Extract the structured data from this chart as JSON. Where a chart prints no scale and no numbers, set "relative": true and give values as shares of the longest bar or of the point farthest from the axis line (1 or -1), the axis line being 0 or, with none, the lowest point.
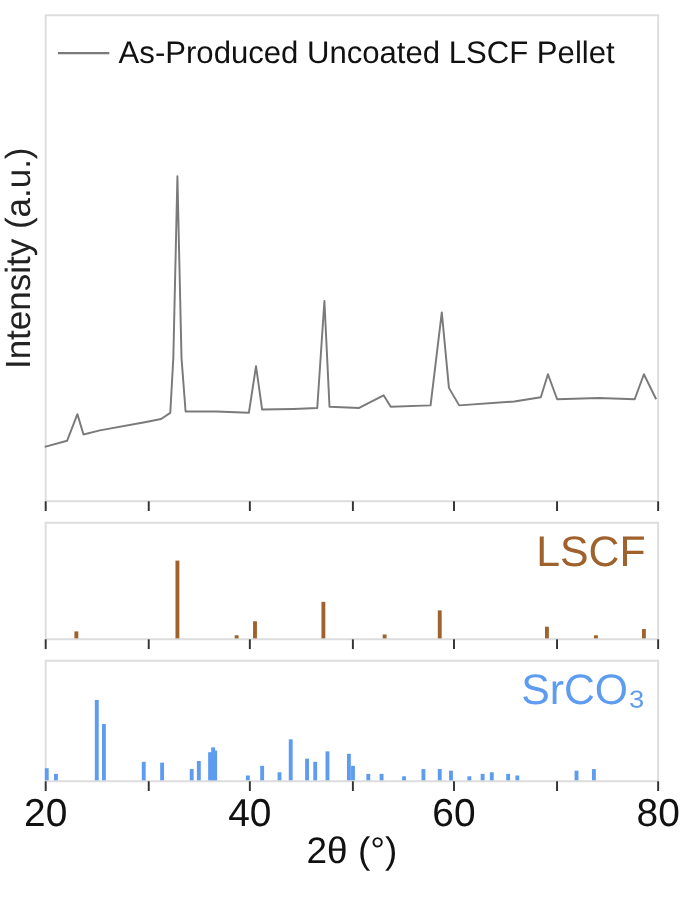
{
  "chart_data": [
    {
      "type": "line",
      "ylabel": "Intensity (a.u.)",
      "relative": true,
      "legend": "top left",
      "grid": false,
      "tick_labels": false,
      "line_style": "solid",
      "marker": "none",
      "xlim": [
        20,
        80
      ],
      "xticks": [
        20,
        {
          "value": 30,
          "label": null
        },
        40,
        {
          "value": 50,
          "label": null
        },
        60,
        {
          "value": 70,
          "label": null
        },
        80
      ],
      "series": [
        {
          "name": "As-Produced Uncoated LSCF Pellet",
          "color": "#7a7a7a",
          "x": [
            20,
            22.2,
            23.2,
            23.8,
            25.4,
            29.8,
            31.4,
            32.3,
            32.6,
            33.0,
            33.4,
            33.8,
            36.8,
            40.0,
            40.7,
            41.3,
            44.4,
            46.7,
            47.4,
            47.9,
            50.8,
            53.2,
            53.9,
            57.8,
            58.9,
            59.6,
            60.6,
            66.0,
            68.6,
            69.3,
            70.2,
            74.3,
            77.8,
            78.7,
            79.9
          ],
          "values": [
            0.165,
            0.184,
            0.266,
            0.203,
            0.216,
            0.241,
            0.251,
            0.27,
            0.44,
            1.0,
            0.44,
            0.274,
            0.274,
            0.27,
            0.414,
            0.28,
            0.282,
            0.285,
            0.615,
            0.289,
            0.285,
            0.324,
            0.289,
            0.293,
            0.58,
            0.347,
            0.293,
            0.305,
            0.318,
            0.389,
            0.312,
            0.316,
            0.312,
            0.389,
            0.312
          ]
        }
      ]
    },
    {
      "type": "bar",
      "relative": true,
      "grid": false,
      "tick_labels": false,
      "xlim": [
        20,
        80
      ],
      "xticks": [
        20,
        {
          "value": 30,
          "label": null
        },
        40,
        {
          "value": 50,
          "label": null
        },
        60,
        {
          "value": 70,
          "label": null
        },
        80
      ],
      "series": [
        {
          "name": "LSCF",
          "color": "#a0622c",
          "x": [
            23.1,
            33.0,
            38.8,
            40.6,
            47.3,
            53.3,
            58.7,
            69.2,
            74.0,
            78.7
          ],
          "values": [
            0.09,
            1.0,
            0.04,
            0.22,
            0.47,
            0.05,
            0.36,
            0.15,
            0.04,
            0.12
          ]
        }
      ]
    },
    {
      "type": "bar",
      "relative": true,
      "grid": false,
      "tick_labels": "x",
      "xlabel": "2θ (°)",
      "xlim": [
        20,
        80
      ],
      "xticks": [
        20,
        {
          "value": 30,
          "label": null
        },
        40,
        {
          "value": 50,
          "label": null
        },
        60,
        {
          "value": 70,
          "label": null
        },
        80
      ],
      "series": [
        {
          "name": "SrCO₃",
          "color": "#5e9cf0",
          "x": [
            20.2,
            21.1,
            25.1,
            25.8,
            29.7,
            31.5,
            34.4,
            35.1,
            36.2,
            36.5,
            36.7,
            39.9,
            41.3,
            43.0,
            44.1,
            45.7,
            46.5,
            47.7,
            49.8,
            50.2,
            51.7,
            53.0,
            55.2,
            57.1,
            58.7,
            59.8,
            61.6,
            62.9,
            63.8,
            65.4,
            66.3,
            72.1,
            73.8
          ],
          "values": [
            0.15,
            0.08,
            1.0,
            0.7,
            0.23,
            0.22,
            0.14,
            0.24,
            0.35,
            0.41,
            0.37,
            0.06,
            0.18,
            0.1,
            0.51,
            0.27,
            0.23,
            0.36,
            0.33,
            0.18,
            0.08,
            0.08,
            0.05,
            0.14,
            0.14,
            0.12,
            0.05,
            0.08,
            0.1,
            0.08,
            0.06,
            0.12,
            0.14
          ]
        }
      ]
    }
  ]
}
